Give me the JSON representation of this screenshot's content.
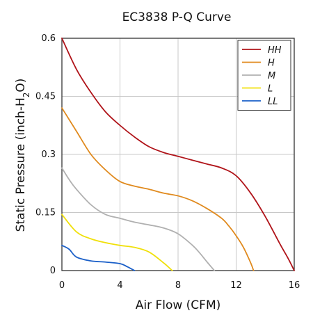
{
  "chart_data": {
    "type": "line",
    "title": "EC3838 P-Q Curve",
    "xlabel": "Air Flow (CFM)",
    "ylabel_parts": [
      "Static Pressure (inch-H",
      "2",
      "O)"
    ],
    "xlim": [
      0,
      16
    ],
    "ylim": [
      0,
      0.6
    ],
    "xticks": [
      0,
      4,
      8,
      12,
      16
    ],
    "xtick_labels": [
      "0",
      "4",
      "8",
      "12",
      "16"
    ],
    "yticks": [
      0,
      0.15,
      0.3,
      0.45,
      0.6
    ],
    "ytick_labels": [
      "0",
      "0.15",
      "0.3",
      "0.45",
      "0.6"
    ],
    "grid": true,
    "legend_position": "top-right",
    "series": [
      {
        "name": "HH",
        "color": "#b0141a",
        "x": [
          0,
          1,
          2,
          3,
          4,
          5,
          6,
          7,
          8,
          9,
          10,
          11,
          12,
          13,
          14,
          15,
          15.6,
          16
        ],
        "y": [
          0.6,
          0.52,
          0.46,
          0.41,
          0.375,
          0.345,
          0.32,
          0.305,
          0.295,
          0.285,
          0.275,
          0.265,
          0.245,
          0.2,
          0.14,
          0.07,
          0.03,
          0
        ]
      },
      {
        "name": "H",
        "color": "#e08a1e",
        "x": [
          0,
          1,
          2,
          3,
          4,
          5,
          6,
          7,
          8,
          9,
          10,
          11,
          11.5,
          12,
          12.5,
          13,
          13.2
        ],
        "y": [
          0.42,
          0.36,
          0.3,
          0.26,
          0.23,
          0.218,
          0.21,
          0.2,
          0.193,
          0.18,
          0.16,
          0.135,
          0.115,
          0.09,
          0.06,
          0.02,
          0
        ]
      },
      {
        "name": "M",
        "color": "#b0b0b0",
        "x": [
          0,
          0.5,
          1,
          2,
          3,
          4,
          5,
          6,
          7,
          8,
          9,
          9.5,
          10,
          10.5
        ],
        "y": [
          0.265,
          0.235,
          0.21,
          0.17,
          0.145,
          0.135,
          0.125,
          0.118,
          0.11,
          0.095,
          0.065,
          0.045,
          0.022,
          0
        ]
      },
      {
        "name": "L",
        "color": "#f0e00a",
        "x": [
          0,
          1,
          2,
          3,
          4,
          5,
          6,
          7,
          7.6
        ],
        "y": [
          0.145,
          0.1,
          0.082,
          0.072,
          0.065,
          0.06,
          0.048,
          0.02,
          0
        ]
      },
      {
        "name": "LL",
        "color": "#1a5fc8",
        "x": [
          0,
          0.5,
          1,
          2,
          3,
          4,
          4.5,
          5
        ],
        "y": [
          0.065,
          0.055,
          0.035,
          0.025,
          0.022,
          0.018,
          0.01,
          0
        ]
      }
    ]
  }
}
